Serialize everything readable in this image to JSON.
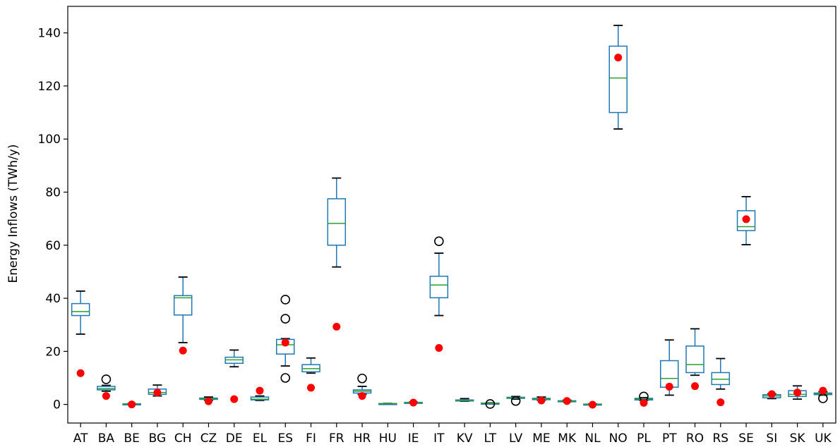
{
  "chart_data": {
    "type": "box",
    "title": "",
    "xlabel": "",
    "ylabel": "Energy Inflows (TWh/y)",
    "ylim": [
      -7,
      150
    ],
    "yticks": [
      0,
      20,
      40,
      60,
      80,
      100,
      120,
      140
    ],
    "ytick_labels": [
      "0",
      "20",
      "40",
      "60",
      "80",
      "100",
      "120",
      "140"
    ],
    "grid": false,
    "colors": {
      "box": "#1f77b4",
      "median": "#2ca02c",
      "marker": "#ff0000",
      "flier": "#000000",
      "whisker": "#000000"
    },
    "categories": [
      "AT",
      "BA",
      "BE",
      "BG",
      "CH",
      "CZ",
      "DE",
      "EL",
      "ES",
      "FI",
      "FR",
      "HR",
      "HU",
      "IE",
      "IT",
      "KV",
      "LT",
      "LV",
      "ME",
      "MK",
      "NL",
      "NO",
      "PL",
      "PT",
      "RO",
      "RS",
      "SE",
      "SI",
      "SK",
      "UK"
    ],
    "boxes": [
      {
        "wlo": 26.5,
        "q1": 33.5,
        "med": 35.0,
        "q3": 38.0,
        "whi": 42.7,
        "fliers": [],
        "dot": 11.8
      },
      {
        "wlo": 5.0,
        "q1": 5.5,
        "med": 6.0,
        "q3": 6.8,
        "whi": 7.2,
        "fliers": [
          9.5
        ],
        "dot": 3.2
      },
      {
        "wlo": 0.1,
        "q1": 0.15,
        "med": 0.2,
        "q3": 0.25,
        "whi": 0.3,
        "fliers": [],
        "dot": 0.0
      },
      {
        "wlo": 3.2,
        "q1": 3.8,
        "med": 4.5,
        "q3": 5.8,
        "whi": 7.3,
        "fliers": [],
        "dot": 4.5
      },
      {
        "wlo": 23.3,
        "q1": 33.7,
        "med": 40.2,
        "q3": 41.0,
        "whi": 48.0,
        "fliers": [],
        "dot": 20.3
      },
      {
        "wlo": 1.6,
        "q1": 1.9,
        "med": 2.1,
        "q3": 2.4,
        "whi": 2.8,
        "fliers": [],
        "dot": 1.2
      },
      {
        "wlo": 14.2,
        "q1": 15.5,
        "med": 16.8,
        "q3": 17.8,
        "whi": 20.5,
        "fliers": [],
        "dot": 2.0
      },
      {
        "wlo": 1.5,
        "q1": 1.7,
        "med": 2.0,
        "q3": 2.8,
        "whi": 3.2,
        "fliers": [],
        "dot": 5.2
      },
      {
        "wlo": 14.5,
        "q1": 19.0,
        "med": 22.5,
        "q3": 24.5,
        "whi": 24.8,
        "fliers": [
          39.5,
          32.3,
          10.0
        ],
        "dot": 23.3
      },
      {
        "wlo": 11.8,
        "q1": 12.3,
        "med": 13.5,
        "q3": 15.0,
        "whi": 17.5,
        "fliers": [],
        "dot": 6.3
      },
      {
        "wlo": 51.8,
        "q1": 60.0,
        "med": 68.2,
        "q3": 77.5,
        "whi": 85.3,
        "fliers": [],
        "dot": 29.3
      },
      {
        "wlo": 3.8,
        "q1": 4.3,
        "med": 5.0,
        "q3": 5.5,
        "whi": 6.8,
        "fliers": [
          9.8
        ],
        "dot": 3.2
      },
      {
        "wlo": 0.2,
        "q1": 0.25,
        "med": 0.3,
        "q3": 0.35,
        "whi": 0.4,
        "fliers": [],
        "dot": null
      },
      {
        "wlo": 0.5,
        "q1": 0.6,
        "med": 0.7,
        "q3": 0.8,
        "whi": 0.9,
        "fliers": [],
        "dot": 0.7
      },
      {
        "wlo": 33.5,
        "q1": 40.2,
        "med": 45.0,
        "q3": 48.3,
        "whi": 57.0,
        "fliers": [
          61.5
        ],
        "dot": 21.3
      },
      {
        "wlo": 1.2,
        "q1": 1.4,
        "med": 1.5,
        "q3": 1.7,
        "whi": 2.2,
        "fliers": [],
        "dot": null
      },
      {
        "wlo": 0.2,
        "q1": 0.3,
        "med": 0.4,
        "q3": 0.5,
        "whi": 0.6,
        "fliers": [
          0.2
        ],
        "dot": null
      },
      {
        "wlo": 2.0,
        "q1": 2.3,
        "med": 2.5,
        "q3": 2.7,
        "whi": 3.0,
        "fliers": [
          1.3
        ],
        "dot": null
      },
      {
        "wlo": 1.6,
        "q1": 1.8,
        "med": 2.0,
        "q3": 2.3,
        "whi": 2.8,
        "fliers": [],
        "dot": 1.5
      },
      {
        "wlo": 1.0,
        "q1": 1.1,
        "med": 1.2,
        "q3": 1.4,
        "whi": 1.6,
        "fliers": [],
        "dot": 1.3
      },
      {
        "wlo": 0.05,
        "q1": 0.1,
        "med": 0.1,
        "q3": 0.15,
        "whi": 0.2,
        "fliers": [],
        "dot": -0.1
      },
      {
        "wlo": 103.8,
        "q1": 110.0,
        "med": 123.0,
        "q3": 135.0,
        "whi": 142.8,
        "fliers": [],
        "dot": 130.7
      },
      {
        "wlo": 1.5,
        "q1": 1.7,
        "med": 2.0,
        "q3": 2.3,
        "whi": 2.6,
        "fliers": [
          3.0
        ],
        "dot": 0.6
      },
      {
        "wlo": 3.5,
        "q1": 6.5,
        "med": 9.8,
        "q3": 16.5,
        "whi": 24.3,
        "fliers": [],
        "dot": 6.7
      },
      {
        "wlo": 11.0,
        "q1": 12.0,
        "med": 15.0,
        "q3": 22.0,
        "whi": 28.5,
        "fliers": [],
        "dot": 6.9
      },
      {
        "wlo": 5.8,
        "q1": 7.5,
        "med": 9.5,
        "q3": 12.0,
        "whi": 17.3,
        "fliers": [],
        "dot": 0.8
      },
      {
        "wlo": 60.2,
        "q1": 65.5,
        "med": 67.0,
        "q3": 73.0,
        "whi": 78.3,
        "fliers": [],
        "dot": 69.8
      },
      {
        "wlo": 2.2,
        "q1": 2.5,
        "med": 3.2,
        "q3": 3.7,
        "whi": 4.0,
        "fliers": [],
        "dot": 3.9
      },
      {
        "wlo": 2.0,
        "q1": 3.0,
        "med": 3.8,
        "q3": 5.2,
        "whi": 7.0,
        "fliers": [],
        "dot": 4.5
      },
      {
        "wlo": 3.5,
        "q1": 3.7,
        "med": 4.0,
        "q3": 4.3,
        "whi": 4.8,
        "fliers": [
          2.3
        ],
        "dot": 5.2
      }
    ]
  }
}
